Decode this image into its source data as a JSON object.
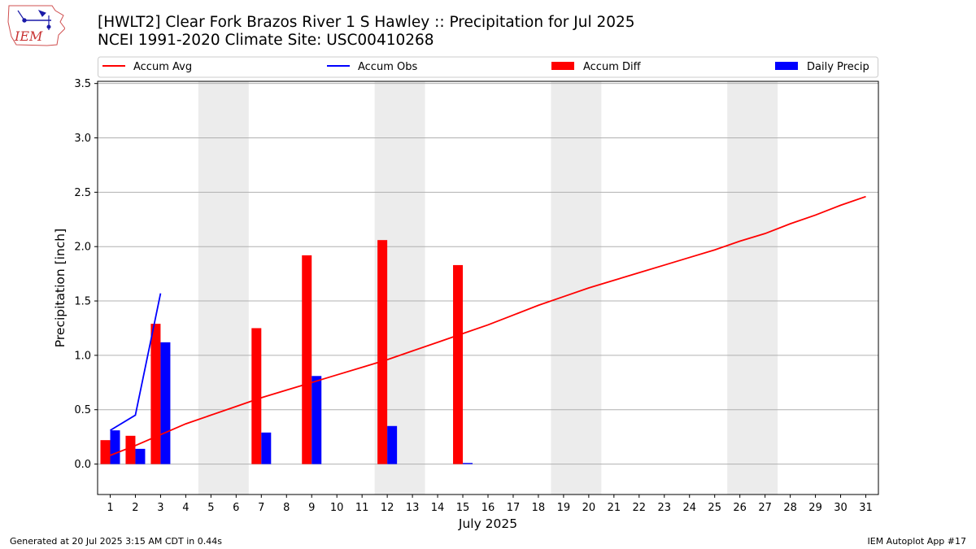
{
  "header": {
    "title": "[HWLT2] Clear Fork Brazos River 1 S Hawley :: Precipitation for Jul 2025",
    "subtitle": "NCEI 1991-2020 Climate Site: USC00410268",
    "logo_text": "IEM"
  },
  "footer": {
    "generated": "Generated at 20 Jul 2025 3:15 AM CDT in 0.44s",
    "app": "IEM Autoplot App #17"
  },
  "colors": {
    "accum_avg": "#ff0000",
    "accum_obs": "#0000ff",
    "accum_diff": "#ff0000",
    "daily_precip": "#0000ff",
    "weekend_shade": "#ececec",
    "grid": "#b0b0b0"
  },
  "chart_data": {
    "type": "bar",
    "xlabel": "July 2025",
    "ylabel": "Precipitation [inch]",
    "ylim": [
      -0.28,
      3.52
    ],
    "yticks": [
      0.0,
      0.5,
      1.0,
      1.5,
      2.0,
      2.5,
      3.0,
      3.5
    ],
    "ytick_labels": [
      "0.0",
      "0.5",
      "1.0",
      "1.5",
      "2.0",
      "2.5",
      "3.0",
      "3.5"
    ],
    "x": [
      1,
      2,
      3,
      4,
      5,
      6,
      7,
      8,
      9,
      10,
      11,
      12,
      13,
      14,
      15,
      16,
      17,
      18,
      19,
      20,
      21,
      22,
      23,
      24,
      25,
      26,
      27,
      28,
      29,
      30,
      31
    ],
    "shaded_days": [
      [
        5,
        6
      ],
      [
        12,
        13
      ],
      [
        19,
        20
      ],
      [
        26,
        27
      ]
    ],
    "grid": "horizontal",
    "legend_position": "top",
    "legend": [
      "Accum Avg",
      "Accum Obs",
      "Accum Diff",
      "Daily Precip"
    ],
    "series": [
      {
        "name": "Accum Avg",
        "kind": "line",
        "values": [
          0.08,
          0.17,
          0.27,
          0.37,
          0.45,
          0.53,
          0.61,
          0.68,
          0.75,
          0.82,
          0.89,
          0.96,
          1.04,
          1.12,
          1.2,
          1.28,
          1.37,
          1.46,
          1.54,
          1.62,
          1.69,
          1.76,
          1.83,
          1.9,
          1.97,
          2.05,
          2.12,
          2.21,
          2.29,
          2.38,
          2.46
        ]
      },
      {
        "name": "Accum Obs",
        "kind": "line",
        "x": [
          1,
          2,
          3
        ],
        "values": [
          0.31,
          0.45,
          1.57
        ]
      },
      {
        "name": "Accum Diff",
        "kind": "bar",
        "x": [
          1,
          2,
          3,
          7,
          9,
          12,
          15
        ],
        "values": [
          0.22,
          0.26,
          1.29,
          1.25,
          1.92,
          2.06,
          1.83
        ]
      },
      {
        "name": "Daily Precip",
        "kind": "bar",
        "x": [
          1,
          2,
          3,
          7,
          9,
          12,
          15
        ],
        "values": [
          0.31,
          0.14,
          1.12,
          0.29,
          0.81,
          0.35,
          0.01
        ]
      }
    ]
  }
}
